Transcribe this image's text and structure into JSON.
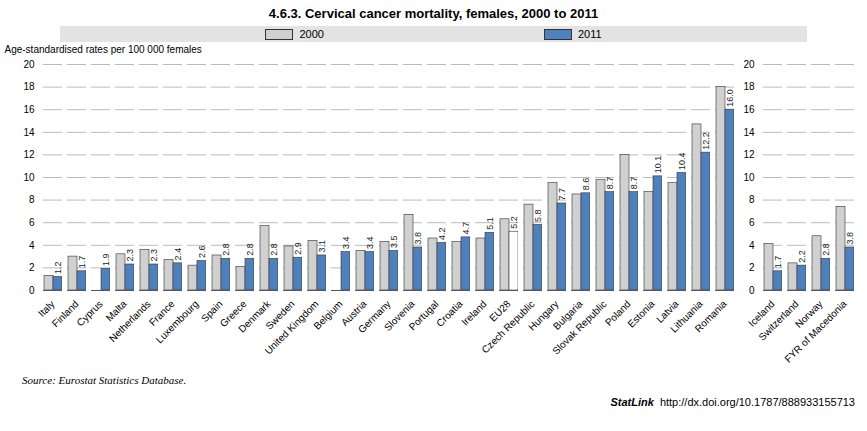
{
  "chart_data": {
    "type": "bar",
    "title": "4.6.3. Cervical cancer mortality, females, 2000 to 2011",
    "y_label": "Age-standardised rates per 100 000 females",
    "source": "Source: Eurostat Statistics Database.",
    "statlink_label": "StatLink",
    "statlink_url": "http://dx.doi.org/10.1787/888933155713",
    "categories": [
      "Italy",
      "Finland",
      "Cyprus",
      "Malta",
      "Netherlands",
      "France",
      "Luxembourg",
      "Spain",
      "Greece",
      "Denmark",
      "Sweden",
      "United Kingdom",
      "Belgium",
      "Austria",
      "Germany",
      "Slovenia",
      "Portugal",
      "Croatia",
      "Ireland",
      "EU28",
      "Czech Republic",
      "Hungary",
      "Bulgaria",
      "Slovak Republic",
      "Poland",
      "Estonia",
      "Latvia",
      "Lithuania",
      "Romania",
      null,
      "Iceland",
      "Switzerland",
      "Norway",
      "FYR of Macedonia"
    ],
    "series": [
      {
        "name": "2000",
        "color": "#d0d0d0",
        "data_labels": false,
        "values": [
          1.3,
          3.0,
          null,
          3.2,
          3.6,
          2.7,
          2.2,
          3.1,
          2.1,
          5.7,
          3.9,
          4.4,
          null,
          3.5,
          4.3,
          6.7,
          4.6,
          4.3,
          4.6,
          6.3,
          7.6,
          9.5,
          8.5,
          9.8,
          12.0,
          8.7,
          9.5,
          14.7,
          18.0,
          null,
          4.1,
          2.4,
          4.8,
          7.4
        ]
      },
      {
        "name": "2011",
        "color": "#4f81bd",
        "data_labels": true,
        "colors": [
          "#4f81bd",
          "#4f81bd",
          "#4f81bd",
          "#4f81bd",
          "#4f81bd",
          "#4f81bd",
          "#4f81bd",
          "#4f81bd",
          "#4f81bd",
          "#4f81bd",
          "#4f81bd",
          "#4f81bd",
          "#4f81bd",
          "#4f81bd",
          "#4f81bd",
          "#4f81bd",
          "#4f81bd",
          "#4f81bd",
          "#4f81bd",
          "#ffffff",
          "#4f81bd",
          "#4f81bd",
          "#4f81bd",
          "#4f81bd",
          "#4f81bd",
          "#4f81bd",
          "#4f81bd",
          "#4f81bd",
          "#4f81bd",
          null,
          "#4f81bd",
          "#4f81bd",
          "#4f81bd",
          "#4f81bd"
        ],
        "values": [
          1.2,
          1.7,
          1.9,
          2.3,
          2.3,
          2.4,
          2.6,
          2.8,
          2.8,
          2.8,
          2.9,
          3.1,
          3.4,
          3.4,
          3.5,
          3.8,
          4.2,
          4.7,
          5.1,
          5.2,
          5.8,
          7.7,
          8.6,
          8.7,
          8.7,
          10.1,
          10.4,
          12.2,
          16.0,
          null,
          1.7,
          2.2,
          2.8,
          3.8
        ]
      }
    ],
    "ylim": [
      0,
      20
    ],
    "yticks": [
      0,
      2,
      4,
      6,
      8,
      10,
      12,
      14,
      16,
      18,
      20
    ],
    "grid": true,
    "legend": "top"
  }
}
